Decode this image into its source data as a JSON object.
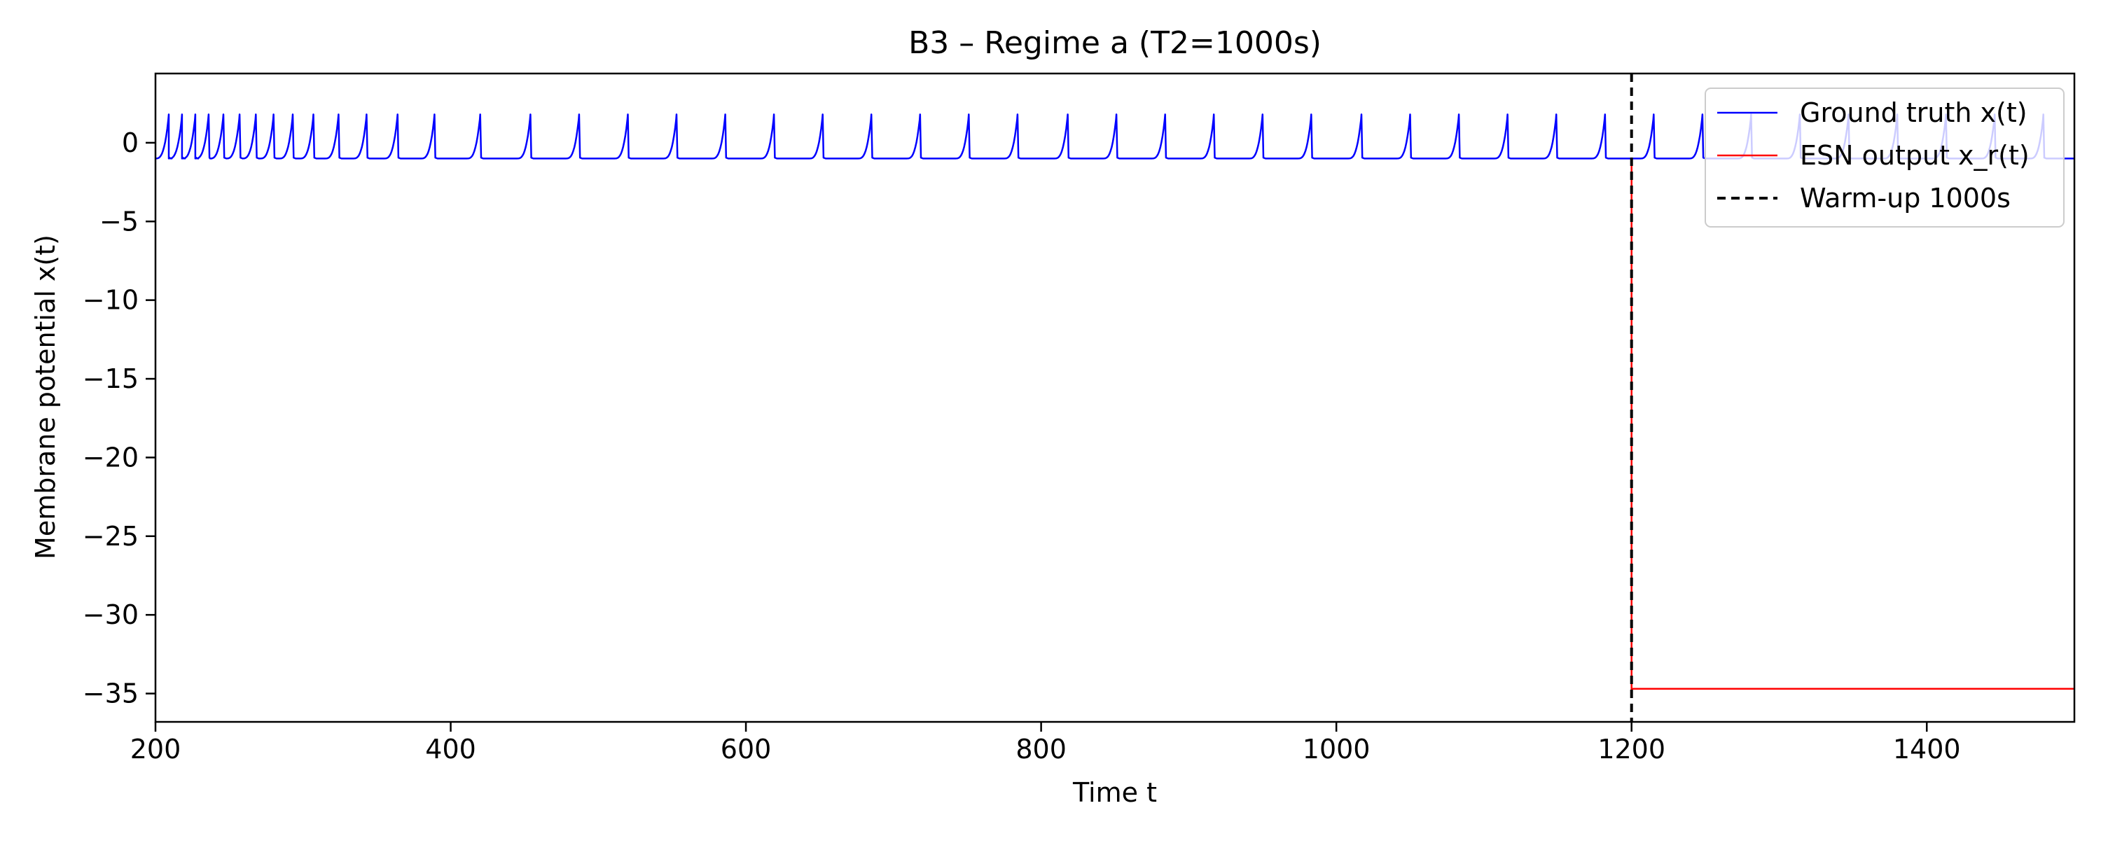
{
  "chart_data": {
    "type": "line",
    "title": "B3 – Regime a (T2=1000s)",
    "xlabel": "Time t",
    "ylabel": "Membrane potential x(t)",
    "xlim": [
      200,
      1500
    ],
    "ylim": [
      -36.8,
      4.4
    ],
    "x_ticks": [
      200,
      400,
      600,
      800,
      1000,
      1200,
      1400
    ],
    "y_ticks": [
      0,
      -5,
      -10,
      -15,
      -20,
      -25,
      -30,
      -35
    ],
    "grid": false,
    "legend_position": "top-right",
    "series": [
      {
        "name": "Ground truth x(t)",
        "color": "#0000ff",
        "baseline": -1.0,
        "spike_peak": 1.8,
        "spike_times": [
          209,
          218,
          227,
          236,
          246,
          257,
          268,
          280,
          293,
          307,
          324,
          343,
          364,
          389,
          420,
          454,
          487,
          520,
          553,
          586,
          619,
          652,
          685,
          718,
          751,
          784,
          818,
          851,
          884,
          917,
          950,
          983,
          1017,
          1050,
          1083,
          1116,
          1149,
          1182,
          1215,
          1248,
          1281,
          1314,
          1347,
          1380,
          1413,
          1446,
          1479
        ]
      },
      {
        "name": "ESN output x_r(t)",
        "color": "#ff0000",
        "x": [
          1200,
          1500
        ],
        "y": [
          -34.7,
          -34.7
        ],
        "jump_from": -1.0
      }
    ],
    "vline": {
      "name": "Warm-up 1000s",
      "x": 1200,
      "color": "#000000",
      "style": "dashed"
    }
  }
}
